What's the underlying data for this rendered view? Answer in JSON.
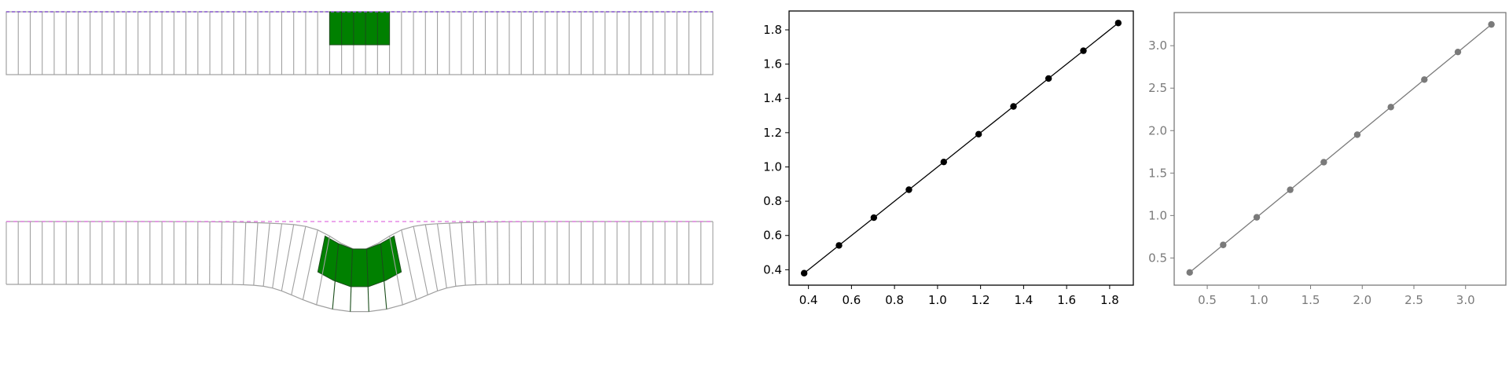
{
  "colors": {
    "background": "#ffffff",
    "mesh_line": "#a0a0a0",
    "highlight_fill": "#008000",
    "highlight_edge": "#1a4d1a",
    "reference_line": "#e070e0",
    "top_reference_line": "#8a5ad0",
    "chart_line": "#000000",
    "chart_axis": "#000000",
    "faded_chart": "#7a7a7a"
  },
  "mesh_diagram": {
    "columns": 59,
    "highlight_columns": 5,
    "panels": [
      "undeformed",
      "deformed"
    ]
  },
  "chart_data": [
    {
      "type": "line",
      "title": "",
      "xlabel": "",
      "ylabel": "",
      "x": [
        0.38,
        0.542,
        0.704,
        0.867,
        1.029,
        1.191,
        1.353,
        1.516,
        1.678,
        1.84
      ],
      "y": [
        0.38,
        0.542,
        0.704,
        0.867,
        1.029,
        1.191,
        1.353,
        1.516,
        1.678,
        1.84
      ],
      "xlim": [
        0.31,
        1.91
      ],
      "ylim": [
        0.31,
        1.91
      ],
      "xticks": [
        "0.4",
        "0.6",
        "0.8",
        "1.0",
        "1.2",
        "1.4",
        "1.6",
        "1.8"
      ],
      "yticks": [
        "0.4",
        "0.6",
        "0.8",
        "1.0",
        "1.2",
        "1.4",
        "1.6",
        "1.8"
      ],
      "grid": false,
      "legend": "none"
    },
    {
      "type": "line",
      "title": "",
      "xlabel": "",
      "ylabel": "",
      "x": [
        0.33,
        0.654,
        0.979,
        1.303,
        1.628,
        1.952,
        2.277,
        2.601,
        2.926,
        3.25
      ],
      "y": [
        0.33,
        0.654,
        0.979,
        1.303,
        1.628,
        1.952,
        2.277,
        2.601,
        2.926,
        3.25
      ],
      "xlim": [
        0.18,
        3.39
      ],
      "ylim": [
        0.18,
        3.39
      ],
      "xticks": [
        "0.5",
        "1.0",
        "1.5",
        "2.0",
        "2.5",
        "3.0"
      ],
      "yticks": [
        "0.5",
        "1.0",
        "1.5",
        "2.0",
        "2.5",
        "3.0"
      ],
      "grid": false,
      "legend": "none"
    }
  ]
}
